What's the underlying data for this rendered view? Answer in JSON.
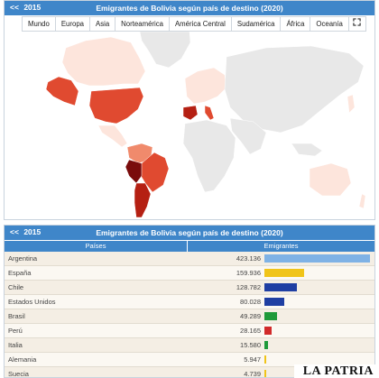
{
  "map_panel": {
    "back_label": "<<",
    "year": "2015",
    "title": "Emigrantes de Bolivia según país de destino (2020)",
    "regions": [
      "Mundo",
      "Europa",
      "Asia",
      "Norteamérica",
      "América Central",
      "Sudamérica",
      "África",
      "Oceanía"
    ],
    "fullscreen_icon": "expand-icon",
    "colors": {
      "land": "#e8e8e8",
      "low": "#fde5dc",
      "mid": "#f08a6c",
      "high": "#e04a30",
      "max": "#b52013"
    }
  },
  "table_panel": {
    "back_label": "<<",
    "year": "2015",
    "title": "Emigrantes de Bolivia según país de destino (2020)",
    "col_country": "Países",
    "col_value": "Emigrantes",
    "max_value": 423136,
    "rows": [
      {
        "country": "Argentina",
        "value": "423.136",
        "n": 423136,
        "color": "#7fb2e5"
      },
      {
        "country": "España",
        "value": "159.936",
        "n": 159936,
        "color": "#f0c419"
      },
      {
        "country": "Chile",
        "value": "128.782",
        "n": 128782,
        "color": "#1f3fa3"
      },
      {
        "country": "Estados Unidos",
        "value": "80.028",
        "n": 80028,
        "color": "#1f3fa3"
      },
      {
        "country": "Brasil",
        "value": "49.289",
        "n": 49289,
        "color": "#1f9a3a"
      },
      {
        "country": "Perú",
        "value": "28.165",
        "n": 28165,
        "color": "#d12a2a"
      },
      {
        "country": "Italia",
        "value": "15.580",
        "n": 15580,
        "color": "#1f9a3a"
      },
      {
        "country": "Alemania",
        "value": "5.947",
        "n": 5947,
        "color": "#f0c419"
      },
      {
        "country": "Suecia",
        "value": "4.739",
        "n": 4739,
        "color": "#f0c419"
      }
    ]
  },
  "logo": "LA PATRIA"
}
